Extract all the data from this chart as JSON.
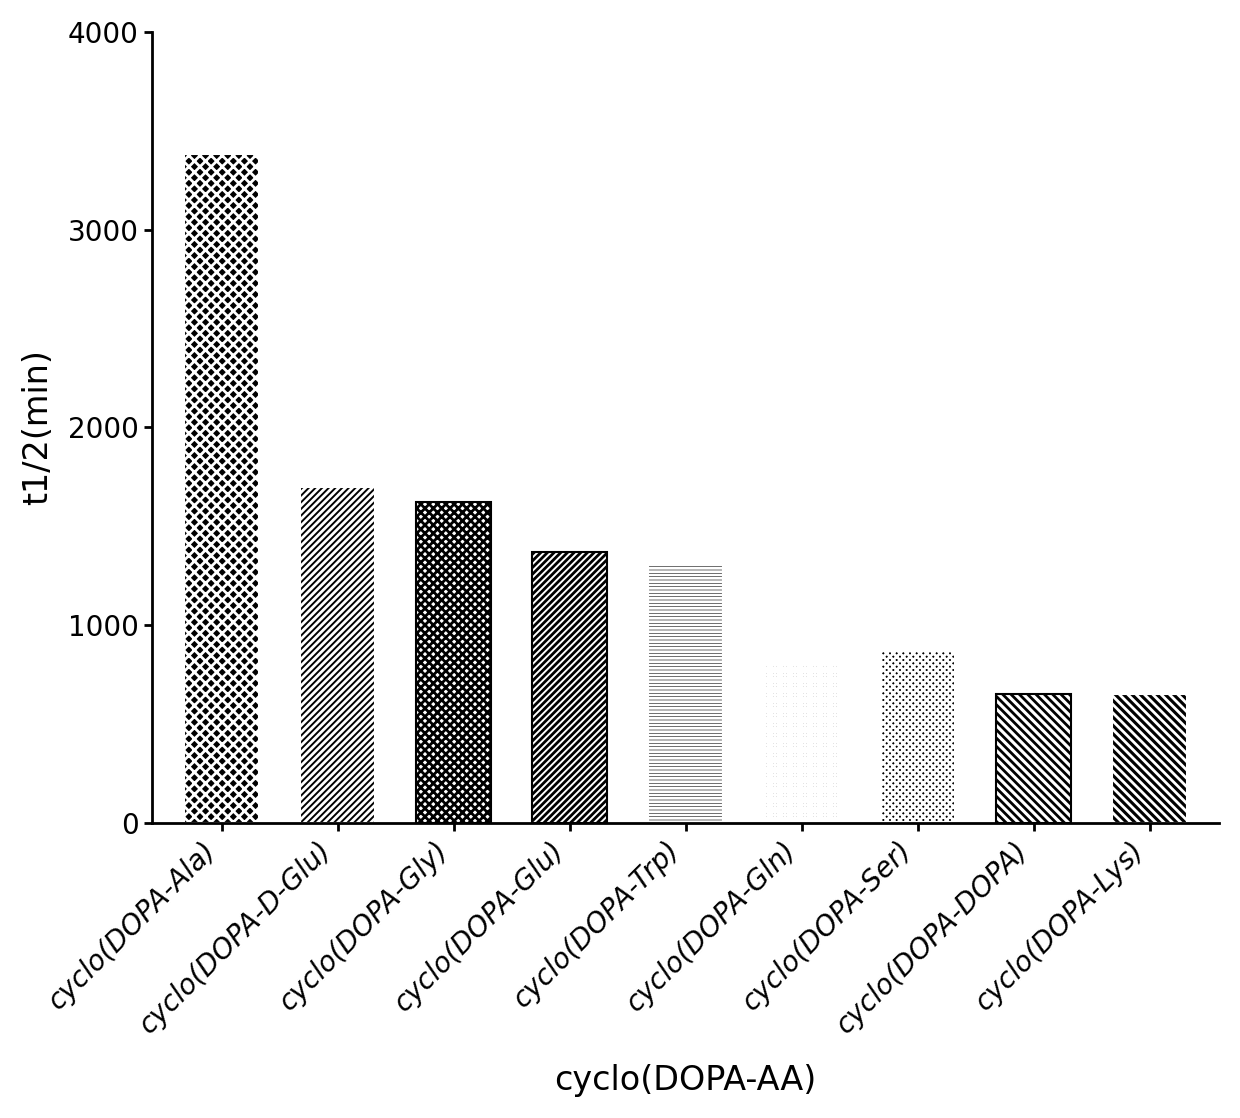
{
  "categories": [
    "cyclo(DOPA-Ala)",
    "cyclo(DOPA-D-Glu)",
    "cyclo(DOPA-Gly)",
    "cyclo(DOPA-Glu)",
    "cyclo(DOPA-Trp)",
    "cyclo(DOPA-Gln)",
    "cyclo(DOPA-Ser)",
    "cyclo(DOPA-DOPA)",
    "cyclo(DOPA-Lys)"
  ],
  "values": [
    3380,
    1700,
    1620,
    1370,
    1310,
    800,
    870,
    650,
    650
  ],
  "ylabel": "t1/2(min)",
  "xlabel": "cyclo(DOPA-AA)",
  "ylim": [
    0,
    4000
  ],
  "yticks": [
    0,
    1000,
    2000,
    3000,
    4000
  ],
  "figsize": [
    12.4,
    11.18
  ],
  "dpi": 100,
  "background_color": "#ffffff",
  "ylabel_fontsize": 24,
  "xlabel_fontsize": 24,
  "tick_fontsize": 20,
  "bar_width": 0.65
}
